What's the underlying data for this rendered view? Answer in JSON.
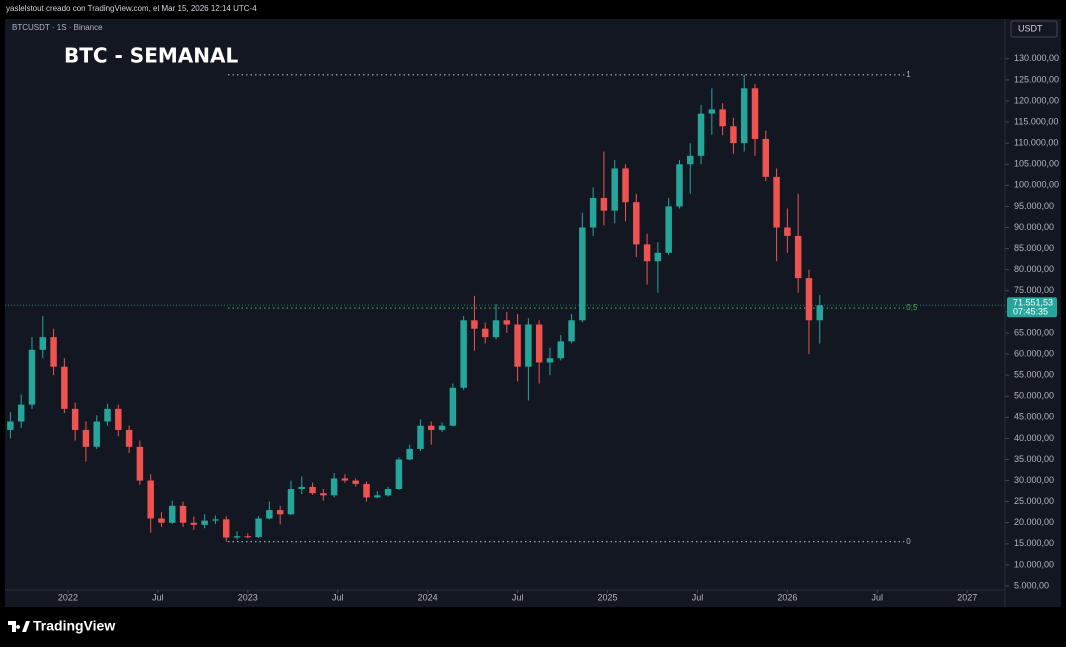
{
  "header": {
    "caption": "yaslelstout creado con TradingView.com, el Mar 15, 2026 12:14 UTC-4",
    "logo": "TradingView"
  },
  "chart_data": {
    "type": "candlestick",
    "title": "BTC - SEMANAL",
    "symbol": "BTCUSDT · 1S · Binance",
    "currency": "USDT",
    "up_color": "#26a69a",
    "down_color": "#ef5350",
    "grid": false,
    "x": [
      2021.68,
      2021.74,
      2021.8,
      2021.86,
      2021.92,
      2021.98,
      2022.04,
      2022.1,
      2022.16,
      2022.22,
      2022.28,
      2022.34,
      2022.4,
      2022.46,
      2022.52,
      2022.58,
      2022.64,
      2022.7,
      2022.76,
      2022.82,
      2022.88,
      2022.94,
      2023.0,
      2023.06,
      2023.12,
      2023.18,
      2023.24,
      2023.3,
      2023.36,
      2023.42,
      2023.48,
      2023.54,
      2023.6,
      2023.66,
      2023.72,
      2023.78,
      2023.84,
      2023.9,
      2023.96,
      2024.02,
      2024.08,
      2024.14,
      2024.2,
      2024.26,
      2024.32,
      2024.38,
      2024.44,
      2024.5,
      2024.56,
      2024.62,
      2024.68,
      2024.74,
      2024.8,
      2024.86,
      2024.92,
      2024.98,
      2025.04,
      2025.1,
      2025.16,
      2025.22,
      2025.28,
      2025.34,
      2025.4,
      2025.46,
      2025.52,
      2025.58,
      2025.64,
      2025.7,
      2025.76,
      2025.82,
      2025.88,
      2025.94,
      2026.0,
      2026.06,
      2026.12,
      2026.18
    ],
    "open": [
      42000,
      44000,
      48000,
      61000,
      64000,
      57000,
      47000,
      42000,
      38000,
      44000,
      47000,
      42000,
      38000,
      30000,
      21000,
      20000,
      24000,
      20000,
      19500,
      20500,
      20800,
      16500,
      16800,
      16600,
      21000,
      23000,
      22000,
      28000,
      28500,
      27000,
      26500,
      30500,
      30000,
      29200,
      26000,
      26500,
      28000,
      35000,
      37500,
      43000,
      42000,
      43000,
      52000,
      68000,
      66000,
      64000,
      68000,
      67000,
      57000,
      67000,
      58000,
      59000,
      63000,
      68000,
      90000,
      97000,
      94000,
      104000,
      96000,
      86000,
      82000,
      84000,
      95000,
      105000,
      107000,
      117000,
      118000,
      114000,
      110000,
      123000,
      111000,
      102000,
      90000,
      88000,
      78000,
      68000
    ],
    "high": [
      46200,
      50400,
      64000,
      69000,
      66000,
      59000,
      48500,
      44000,
      45500,
      48200,
      48000,
      43000,
      39500,
      31500,
      22500,
      25200,
      25000,
      21500,
      22000,
      21700,
      21500,
      18000,
      17500,
      21600,
      25000,
      24000,
      30000,
      31000,
      29500,
      28000,
      31800,
      31500,
      30500,
      29800,
      27500,
      28500,
      35500,
      38500,
      44500,
      44000,
      43800,
      53000,
      69000,
      73800,
      67500,
      71900,
      70000,
      69500,
      68500,
      68000,
      61500,
      64500,
      69500,
      93500,
      99500,
      108000,
      106000,
      105000,
      98000,
      88500,
      86500,
      97000,
      106000,
      110000,
      119000,
      123000,
      119500,
      116000,
      126200,
      124000,
      113000,
      104000,
      94500,
      98000,
      80000,
      74000
    ],
    "low": [
      40000,
      42500,
      47000,
      59000,
      55000,
      46000,
      39500,
      34500,
      37500,
      43000,
      40500,
      36500,
      29000,
      17600,
      19000,
      19700,
      19000,
      18300,
      18700,
      19700,
      15500,
      16000,
      16300,
      16400,
      20800,
      19600,
      21800,
      26800,
      26600,
      25200,
      26000,
      29500,
      28600,
      25000,
      25800,
      26200,
      27800,
      34800,
      37000,
      38500,
      41500,
      42800,
      51500,
      60800,
      62500,
      63500,
      65000,
      53500,
      49000,
      53000,
      55000,
      58500,
      62500,
      67500,
      88000,
      90500,
      91000,
      91500,
      83000,
      76500,
      74500,
      83500,
      94500,
      98000,
      105000,
      112000,
      111900,
      107500,
      108000,
      107000,
      101000,
      82000,
      84000,
      74500,
      60000,
      62500
    ],
    "close": [
      44000,
      48000,
      61000,
      64000,
      57000,
      47000,
      42000,
      38000,
      44000,
      47000,
      42000,
      38000,
      30000,
      21000,
      20000,
      24000,
      20000,
      19500,
      20500,
      20800,
      16500,
      16800,
      16600,
      21000,
      23000,
      22000,
      28000,
      28500,
      27000,
      26500,
      30500,
      30000,
      29200,
      26000,
      26500,
      28000,
      35000,
      37500,
      43000,
      42000,
      43000,
      52000,
      68000,
      66000,
      64000,
      68000,
      67000,
      57000,
      67000,
      58000,
      59000,
      63000,
      68000,
      90000,
      97000,
      94000,
      104000,
      96000,
      86000,
      82000,
      84000,
      95000,
      105000,
      107000,
      117000,
      118000,
      114000,
      110000,
      123000,
      111000,
      102000,
      90000,
      88000,
      78000,
      68000,
      71551.53
    ],
    "xlim": [
      2021.65,
      2027.21
    ],
    "xticks": [
      2022,
      {
        "value": 2022.5,
        "label": "Jul"
      },
      2023,
      {
        "value": 2023.5,
        "label": "Jul"
      },
      2024,
      {
        "value": 2024.5,
        "label": "Jul"
      },
      2025,
      {
        "value": 2025.5,
        "label": "Jul"
      },
      2026,
      {
        "value": 2026.5,
        "label": "Jul"
      },
      2027
    ],
    "ylim": [
      4050,
      139200
    ],
    "yticks": [
      {
        "value": 5000,
        "label": "5.000,00"
      },
      {
        "value": 10000,
        "label": "10.000,00"
      },
      {
        "value": 15000,
        "label": "15.000,00"
      },
      {
        "value": 20000,
        "label": "20.000,00"
      },
      {
        "value": 25000,
        "label": "25.000,00"
      },
      {
        "value": 30000,
        "label": "30.000,00"
      },
      {
        "value": 35000,
        "label": "35.000,00"
      },
      {
        "value": 40000,
        "label": "40.000,00"
      },
      {
        "value": 45000,
        "label": "45.000,00"
      },
      {
        "value": 50000,
        "label": "50.000,00"
      },
      {
        "value": 55000,
        "label": "55.000,00"
      },
      {
        "value": 60000,
        "label": "60.000,00"
      },
      {
        "value": 65000,
        "label": "65.000,00"
      },
      {
        "value": 70000,
        "label": "70.000,00"
      },
      {
        "value": 75000,
        "label": "75.000,00"
      },
      {
        "value": 80000,
        "label": "80.000,00"
      },
      {
        "value": 85000,
        "label": "85.000,00"
      },
      {
        "value": 90000,
        "label": "90.000,00"
      },
      {
        "value": 95000,
        "label": "95.000,00"
      },
      {
        "value": 100000,
        "label": "100.000,00"
      },
      {
        "value": 105000,
        "label": "105.000,00"
      },
      {
        "value": 110000,
        "label": "110.000,00"
      },
      {
        "value": 115000,
        "label": "115.000,00"
      },
      {
        "value": 120000,
        "label": "120.000,00"
      },
      {
        "value": 125000,
        "label": "125.000,00"
      },
      {
        "value": 130000,
        "label": "130.000,00"
      }
    ],
    "fib_x": [
      2022.89,
      2026.65
    ],
    "fib_levels": [
      {
        "label": "1",
        "value": 126200,
        "color": "#b2b5be"
      },
      {
        "label": "0,5",
        "value": 70900,
        "color": "#4caf50"
      },
      {
        "label": "0",
        "value": 15500,
        "color": "#b2b5be"
      }
    ],
    "last_price": {
      "value": 71551.53,
      "label": "71.551,53",
      "countdown": "07:45:35",
      "color": "#26a69a"
    }
  }
}
